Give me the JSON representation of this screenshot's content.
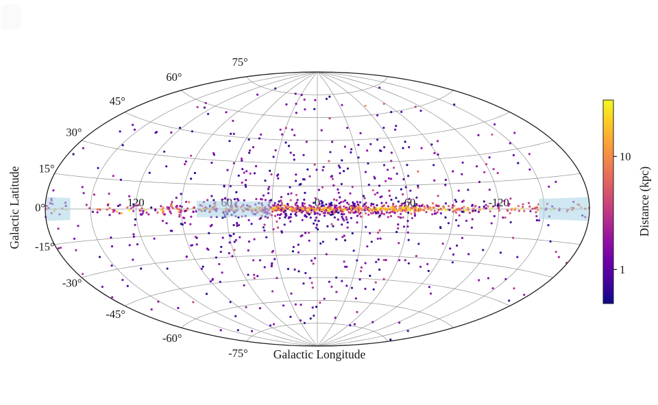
{
  "chart_data": {
    "type": "scatter",
    "projection": "aitoff",
    "title": "",
    "xlabel": "Galactic Longitude",
    "ylabel": "Galactic Latitude",
    "background_color": "#ffffff",
    "text_color": "#151515",
    "lon_ticks": [
      {
        "value": 120,
        "label": "120"
      },
      {
        "value": 60,
        "label": "60"
      },
      {
        "value": 0,
        "label": "0"
      },
      {
        "value": -60,
        "label": "-60"
      },
      {
        "value": -120,
        "label": "-120"
      }
    ],
    "lat_ticks": [
      {
        "value": 75,
        "label": "75°"
      },
      {
        "value": 60,
        "label": "60°"
      },
      {
        "value": 45,
        "label": "45°"
      },
      {
        "value": 30,
        "label": "30°"
      },
      {
        "value": 15,
        "label": "15°"
      },
      {
        "value": 0,
        "label": "0°"
      },
      {
        "value": -15,
        "label": "-15°"
      },
      {
        "value": -30,
        "label": "-30°"
      },
      {
        "value": -45,
        "label": "-45°"
      },
      {
        "value": -60,
        "label": "-60°"
      },
      {
        "value": -75,
        "label": "-75°"
      }
    ],
    "grid": {
      "meridian_step_deg": 30,
      "parallel_step_deg": 15,
      "line_color": "#8f8f8f",
      "outline_color": "#1c1c1c"
    },
    "colorbar": {
      "label": "Distance (kpc)",
      "scale": "log",
      "range_kpc": [
        0.5,
        31.5
      ],
      "ticks": [
        {
          "value": 10,
          "label": "10"
        },
        {
          "value": 1,
          "label": "1"
        }
      ],
      "colormap": "plasma",
      "colormap_stops": [
        "#0d0887",
        "#41049d",
        "#6a00a8",
        "#8f0da4",
        "#b12a90",
        "#cc4778",
        "#e16462",
        "#f2844b",
        "#fca636",
        "#fcce25",
        "#f0f921"
      ]
    },
    "shaded_regions": [
      {
        "name": "left-edge-mask",
        "lon_range": [
          164,
          180
        ],
        "lat_range": [
          -5,
          5
        ],
        "color": "#a8d4e4",
        "opacity": 0.55
      },
      {
        "name": "inner-disk-mask",
        "lon_range": [
          31,
          80
        ],
        "lat_range": [
          -5,
          5
        ],
        "color": "#a8d4e4",
        "opacity": 0.55
      },
      {
        "name": "right-edge-mask",
        "lon_range": [
          -180,
          -147
        ],
        "lat_range": [
          -5,
          5
        ],
        "color": "#a8d4e4",
        "opacity": 0.55
      }
    ],
    "scatter": {
      "marker_radius_px": 1.6,
      "marker_opacity": 0.95,
      "seed": 20240817,
      "distance_to_color": "t = (log10(d_kpc) + 0.301) / 1.80 on plasma colormap",
      "groups": [
        {
          "name": "galactic-plane",
          "count": 900,
          "lon_mean_deg": 0,
          "lon_sigma_deg": 52,
          "lon_uniform_fraction": 0.25,
          "lat_sigma_deg": 3.2,
          "lat_shrinks_with_distance": true,
          "log10_d_mean": 0.52,
          "log10_d_sigma": 0.46,
          "log10_d_clamp": [
            -0.3,
            1.48
          ]
        },
        {
          "name": "off-plane-halo",
          "count": 540,
          "lon_mean_deg": 0,
          "lon_sigma_deg": 65,
          "lon_uniform_fraction": 0.38,
          "lat_sigma_deg": 27,
          "lat_uniform_fraction": 0.28,
          "lat_min_abs_deg": 3,
          "lat_max_abs_deg": 84,
          "log10_d_mean": 0.02,
          "log10_d_sigma": 0.22,
          "log10_d_clamp": [
            -0.3,
            0.9
          ],
          "outlier_fraction": 0.06,
          "outlier_log10_d_boost": 0.5
        },
        {
          "name": "bright-inner-cluster",
          "count": 55,
          "lon_mean_deg": -52,
          "lon_sigma_deg": 14,
          "lat_sigma_deg": 0.55,
          "log10_d_mean": 1.18,
          "log10_d_sigma": 0.18,
          "log10_d_clamp": [
            0.75,
            1.5
          ]
        },
        {
          "name": "bright-center-cluster",
          "count": 45,
          "lon_mean_deg": 5,
          "lon_sigma_deg": 19,
          "lat_sigma_deg": 0.55,
          "log10_d_mean": 1.15,
          "log10_d_sigma": 0.18,
          "log10_d_clamp": [
            0.75,
            1.5
          ]
        }
      ]
    }
  }
}
